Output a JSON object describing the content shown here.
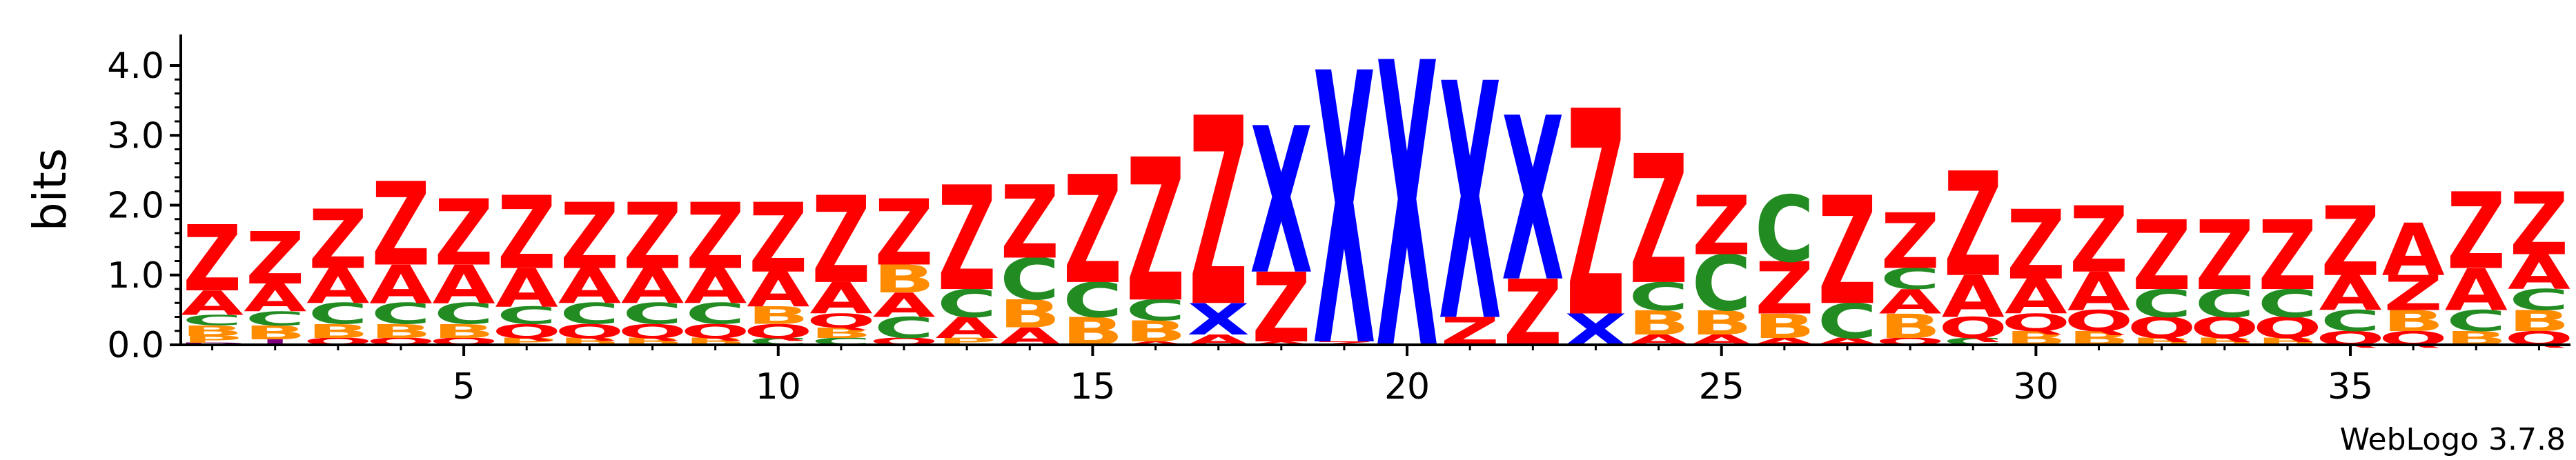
{
  "chart_data": {
    "type": "sequence-logo",
    "ylabel": "bits",
    "ylim": [
      0,
      4.0
    ],
    "y_ticks": [
      "0.0",
      "1.0",
      "2.0",
      "3.0",
      "4.0"
    ],
    "x_ticks": [
      5,
      10,
      15,
      20,
      25,
      30,
      35
    ],
    "x_tick_labels": [
      "5",
      "10",
      "15",
      "20",
      "25",
      "30",
      "35"
    ],
    "credit": "WebLogo 3.7.8",
    "colors": {
      "Z": "#ff0000",
      "X": "#0000ff",
      "A": "#ff0000",
      "C": "#228b22",
      "B": "#ff8c00",
      "Q": "#ff0000",
      "O": "#ff0000",
      "P": "#ff8c00",
      "D": "#800080",
      "I": "#800080",
      "T": "#ff8c00",
      "E": "#ff0000"
    },
    "positions": [
      {
        "pos": 1,
        "stack": [
          [
            "D",
            0.03
          ],
          [
            "P",
            0.1
          ],
          [
            "B",
            0.15
          ],
          [
            "C",
            0.15
          ],
          [
            "A",
            0.35
          ],
          [
            "Z",
            0.95
          ]
        ]
      },
      {
        "pos": 2,
        "stack": [
          [
            "I",
            0.08
          ],
          [
            "B",
            0.2
          ],
          [
            "C",
            0.2
          ],
          [
            "A",
            0.4
          ],
          [
            "Z",
            0.75
          ]
        ]
      },
      {
        "pos": 3,
        "stack": [
          [
            "Q",
            0.1
          ],
          [
            "B",
            0.2
          ],
          [
            "C",
            0.3
          ],
          [
            "A",
            0.5
          ],
          [
            "Z",
            0.85
          ]
        ]
      },
      {
        "pos": 4,
        "stack": [
          [
            "Q",
            0.1
          ],
          [
            "B",
            0.2
          ],
          [
            "C",
            0.3
          ],
          [
            "A",
            0.55
          ],
          [
            "Z",
            1.2
          ]
        ]
      },
      {
        "pos": 5,
        "stack": [
          [
            "Q",
            0.1
          ],
          [
            "B",
            0.2
          ],
          [
            "C",
            0.3
          ],
          [
            "A",
            0.55
          ],
          [
            "Z",
            0.95
          ]
        ]
      },
      {
        "pos": 6,
        "stack": [
          [
            "P",
            0.1
          ],
          [
            "Q",
            0.2
          ],
          [
            "C",
            0.25
          ],
          [
            "A",
            0.55
          ],
          [
            "Z",
            1.05
          ]
        ]
      },
      {
        "pos": 7,
        "stack": [
          [
            "B",
            0.1
          ],
          [
            "Q",
            0.2
          ],
          [
            "C",
            0.3
          ],
          [
            "A",
            0.5
          ],
          [
            "Z",
            0.95
          ]
        ]
      },
      {
        "pos": 8,
        "stack": [
          [
            "B",
            0.1
          ],
          [
            "Q",
            0.2
          ],
          [
            "C",
            0.3
          ],
          [
            "A",
            0.5
          ],
          [
            "Z",
            0.95
          ]
        ]
      },
      {
        "pos": 9,
        "stack": [
          [
            "B",
            0.1
          ],
          [
            "Q",
            0.2
          ],
          [
            "C",
            0.3
          ],
          [
            "A",
            0.5
          ],
          [
            "Z",
            0.95
          ]
        ]
      },
      {
        "pos": 10,
        "stack": [
          [
            "C",
            0.1
          ],
          [
            "Q",
            0.2
          ],
          [
            "B",
            0.25
          ],
          [
            "A",
            0.5
          ],
          [
            "Z",
            1.0
          ]
        ]
      },
      {
        "pos": 11,
        "stack": [
          [
            "C",
            0.1
          ],
          [
            "B",
            0.15
          ],
          [
            "Q",
            0.2
          ],
          [
            "A",
            0.45
          ],
          [
            "Z",
            1.25
          ]
        ]
      },
      {
        "pos": 12,
        "stack": [
          [
            "O",
            0.1
          ],
          [
            "C",
            0.3
          ],
          [
            "A",
            0.35
          ],
          [
            "B",
            0.4
          ],
          [
            "Z",
            0.95
          ]
        ]
      },
      {
        "pos": 13,
        "stack": [
          [
            "P",
            0.1
          ],
          [
            "A",
            0.3
          ],
          [
            "C",
            0.4
          ],
          [
            "Z",
            1.5
          ]
        ]
      },
      {
        "pos": 14,
        "stack": [
          [
            "A",
            0.25
          ],
          [
            "B",
            0.4
          ],
          [
            "C",
            0.6
          ],
          [
            "Z",
            1.05
          ]
        ]
      },
      {
        "pos": 15,
        "stack": [
          [
            "B",
            0.4
          ],
          [
            "C",
            0.5
          ],
          [
            "Z",
            1.55
          ]
        ]
      },
      {
        "pos": 16,
        "stack": [
          [
            "A",
            0.05
          ],
          [
            "B",
            0.3
          ],
          [
            "C",
            0.3
          ],
          [
            "Z",
            2.05
          ]
        ]
      },
      {
        "pos": 17,
        "stack": [
          [
            "A",
            0.15
          ],
          [
            "X",
            0.45
          ],
          [
            "Z",
            2.7
          ]
        ]
      },
      {
        "pos": 18,
        "stack": [
          [
            "A",
            0.05
          ],
          [
            "Z",
            1.0
          ],
          [
            "X",
            2.1
          ]
        ]
      },
      {
        "pos": 19,
        "stack": [
          [
            "Z",
            0.05
          ],
          [
            "X",
            3.9
          ]
        ]
      },
      {
        "pos": 20,
        "stack": [
          [
            "X",
            4.1
          ]
        ]
      },
      {
        "pos": 21,
        "stack": [
          [
            "Z",
            0.4
          ],
          [
            "X",
            3.4
          ]
        ]
      },
      {
        "pos": 22,
        "stack": [
          [
            "Z",
            0.95
          ],
          [
            "X",
            2.35
          ]
        ]
      },
      {
        "pos": 23,
        "stack": [
          [
            "X",
            0.45
          ],
          [
            "Z",
            2.95
          ]
        ]
      },
      {
        "pos": 24,
        "stack": [
          [
            "A",
            0.15
          ],
          [
            "B",
            0.35
          ],
          [
            "C",
            0.4
          ],
          [
            "Z",
            1.85
          ]
        ]
      },
      {
        "pos": 25,
        "stack": [
          [
            "A",
            0.15
          ],
          [
            "B",
            0.35
          ],
          [
            "C",
            0.8
          ],
          [
            "Z",
            0.85
          ]
        ]
      },
      {
        "pos": 26,
        "stack": [
          [
            "A",
            0.1
          ],
          [
            "B",
            0.35
          ],
          [
            "Z",
            0.75
          ],
          [
            "C",
            0.95
          ]
        ]
      },
      {
        "pos": 27,
        "stack": [
          [
            "A",
            0.1
          ],
          [
            "C",
            0.5
          ],
          [
            "Z",
            1.55
          ]
        ]
      },
      {
        "pos": 28,
        "stack": [
          [
            "Q",
            0.1
          ],
          [
            "B",
            0.35
          ],
          [
            "A",
            0.35
          ],
          [
            "C",
            0.3
          ],
          [
            "Z",
            0.8
          ]
        ]
      },
      {
        "pos": 29,
        "stack": [
          [
            "C",
            0.1
          ],
          [
            "Q",
            0.3
          ],
          [
            "A",
            0.6
          ],
          [
            "Z",
            1.5
          ]
        ]
      },
      {
        "pos": 30,
        "stack": [
          [
            "B",
            0.2
          ],
          [
            "Q",
            0.25
          ],
          [
            "A",
            0.5
          ],
          [
            "Z",
            1.0
          ]
        ]
      },
      {
        "pos": 31,
        "stack": [
          [
            "B",
            0.2
          ],
          [
            "Q",
            0.3
          ],
          [
            "A",
            0.55
          ],
          [
            "Z",
            0.95
          ]
        ]
      },
      {
        "pos": 32,
        "stack": [
          [
            "B",
            0.1
          ],
          [
            "Q",
            0.3
          ],
          [
            "C",
            0.4
          ],
          [
            "Z",
            1.0
          ]
        ]
      },
      {
        "pos": 33,
        "stack": [
          [
            "B",
            0.1
          ],
          [
            "Q",
            0.3
          ],
          [
            "C",
            0.4
          ],
          [
            "Z",
            1.0
          ]
        ]
      },
      {
        "pos": 34,
        "stack": [
          [
            "B",
            0.1
          ],
          [
            "Q",
            0.3
          ],
          [
            "C",
            0.4
          ],
          [
            "Z",
            1.0
          ]
        ]
      },
      {
        "pos": 35,
        "stack": [
          [
            "Q",
            0.2
          ],
          [
            "C",
            0.3
          ],
          [
            "A",
            0.5
          ],
          [
            "Z",
            1.0
          ]
        ]
      },
      {
        "pos": 36,
        "stack": [
          [
            "Q",
            0.2
          ],
          [
            "B",
            0.3
          ],
          [
            "Z",
            0.5
          ],
          [
            "A",
            0.75
          ]
        ]
      },
      {
        "pos": 37,
        "stack": [
          [
            "B",
            0.2
          ],
          [
            "C",
            0.3
          ],
          [
            "A",
            0.6
          ],
          [
            "Z",
            1.1
          ]
        ]
      },
      {
        "pos": 38,
        "stack": [
          [
            "Q",
            0.2
          ],
          [
            "B",
            0.3
          ],
          [
            "C",
            0.3
          ],
          [
            "A",
            0.5
          ],
          [
            "Z",
            0.9
          ]
        ]
      }
    ]
  }
}
